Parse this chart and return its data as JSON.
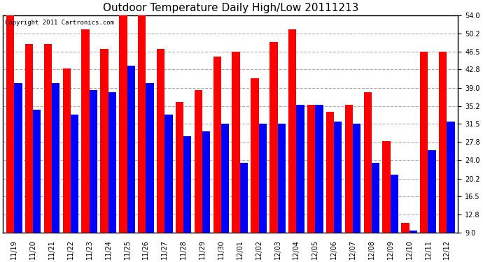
{
  "title": "Outdoor Temperature Daily High/Low 20111213",
  "copyright": "Copyright 2011 Cartronics.com",
  "ylim": [
    9.0,
    54.0
  ],
  "yticks": [
    9.0,
    12.8,
    16.5,
    20.2,
    24.0,
    27.8,
    31.5,
    35.2,
    39.0,
    42.8,
    46.5,
    50.2,
    54.0
  ],
  "categories": [
    "11/19",
    "11/20",
    "11/21",
    "11/22",
    "11/23",
    "11/24",
    "11/25",
    "11/26",
    "11/27",
    "11/28",
    "11/29",
    "11/30",
    "12/01",
    "12/02",
    "12/03",
    "12/04",
    "12/05",
    "12/06",
    "12/07",
    "12/08",
    "12/09",
    "12/10",
    "12/11",
    "12/12"
  ],
  "highs": [
    54.0,
    48.0,
    48.0,
    43.0,
    51.0,
    47.0,
    54.0,
    54.0,
    47.0,
    36.0,
    38.5,
    45.5,
    46.5,
    41.0,
    48.5,
    51.0,
    35.5,
    34.0,
    35.5,
    38.0,
    28.0,
    11.0,
    46.5,
    46.5
  ],
  "lows": [
    40.0,
    34.5,
    40.0,
    33.5,
    38.5,
    38.0,
    43.5,
    40.0,
    33.5,
    29.0,
    30.0,
    31.5,
    23.5,
    31.5,
    31.5,
    35.5,
    35.5,
    32.0,
    31.5,
    23.5,
    21.0,
    9.5,
    26.0,
    32.0
  ],
  "high_color": "#ff0000",
  "low_color": "#0000ff",
  "bg_color": "#ffffff",
  "grid_color": "#999999",
  "title_fontsize": 11,
  "bar_width": 0.42,
  "figsize": [
    6.9,
    3.75
  ],
  "dpi": 100
}
